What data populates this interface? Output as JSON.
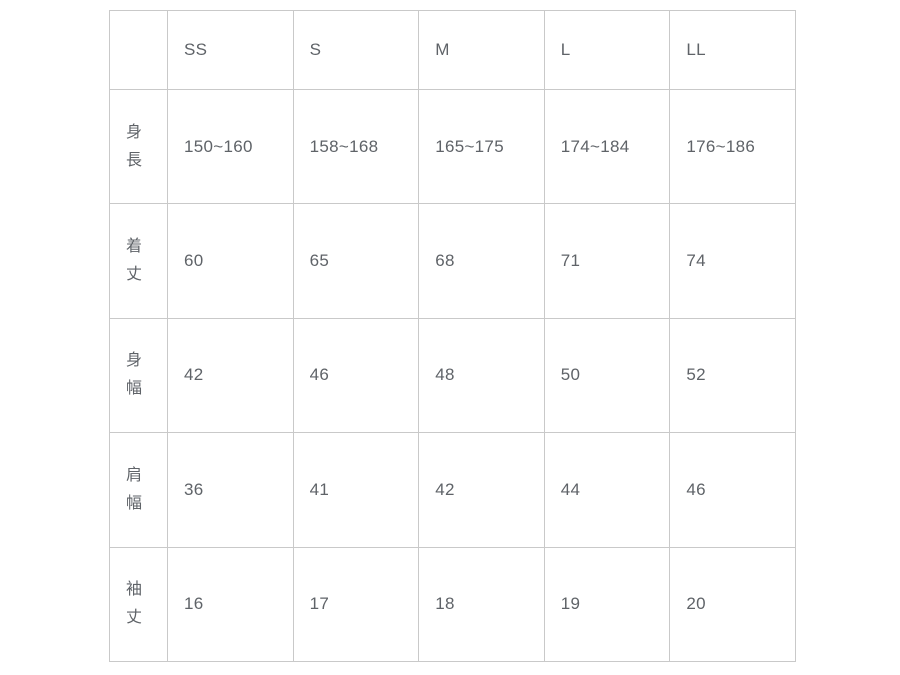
{
  "table": {
    "columns": [
      "",
      "SS",
      "S",
      "M",
      "L",
      "LL"
    ],
    "rows": [
      {
        "label": "身長",
        "values": [
          "150~160",
          "158~168",
          "165~175",
          "174~184",
          "176~186"
        ]
      },
      {
        "label": "着丈",
        "values": [
          "60",
          "65",
          "68",
          "71",
          "74"
        ]
      },
      {
        "label": "身幅",
        "values": [
          "42",
          "46",
          "48",
          "50",
          "52"
        ]
      },
      {
        "label": "肩幅",
        "values": [
          "36",
          "41",
          "42",
          "44",
          "46"
        ]
      },
      {
        "label": "袖丈",
        "values": [
          "16",
          "17",
          "18",
          "19",
          "20"
        ]
      }
    ]
  },
  "colors": {
    "border": "#c9c9c9",
    "text": "#5f6368",
    "background": "#ffffff"
  }
}
